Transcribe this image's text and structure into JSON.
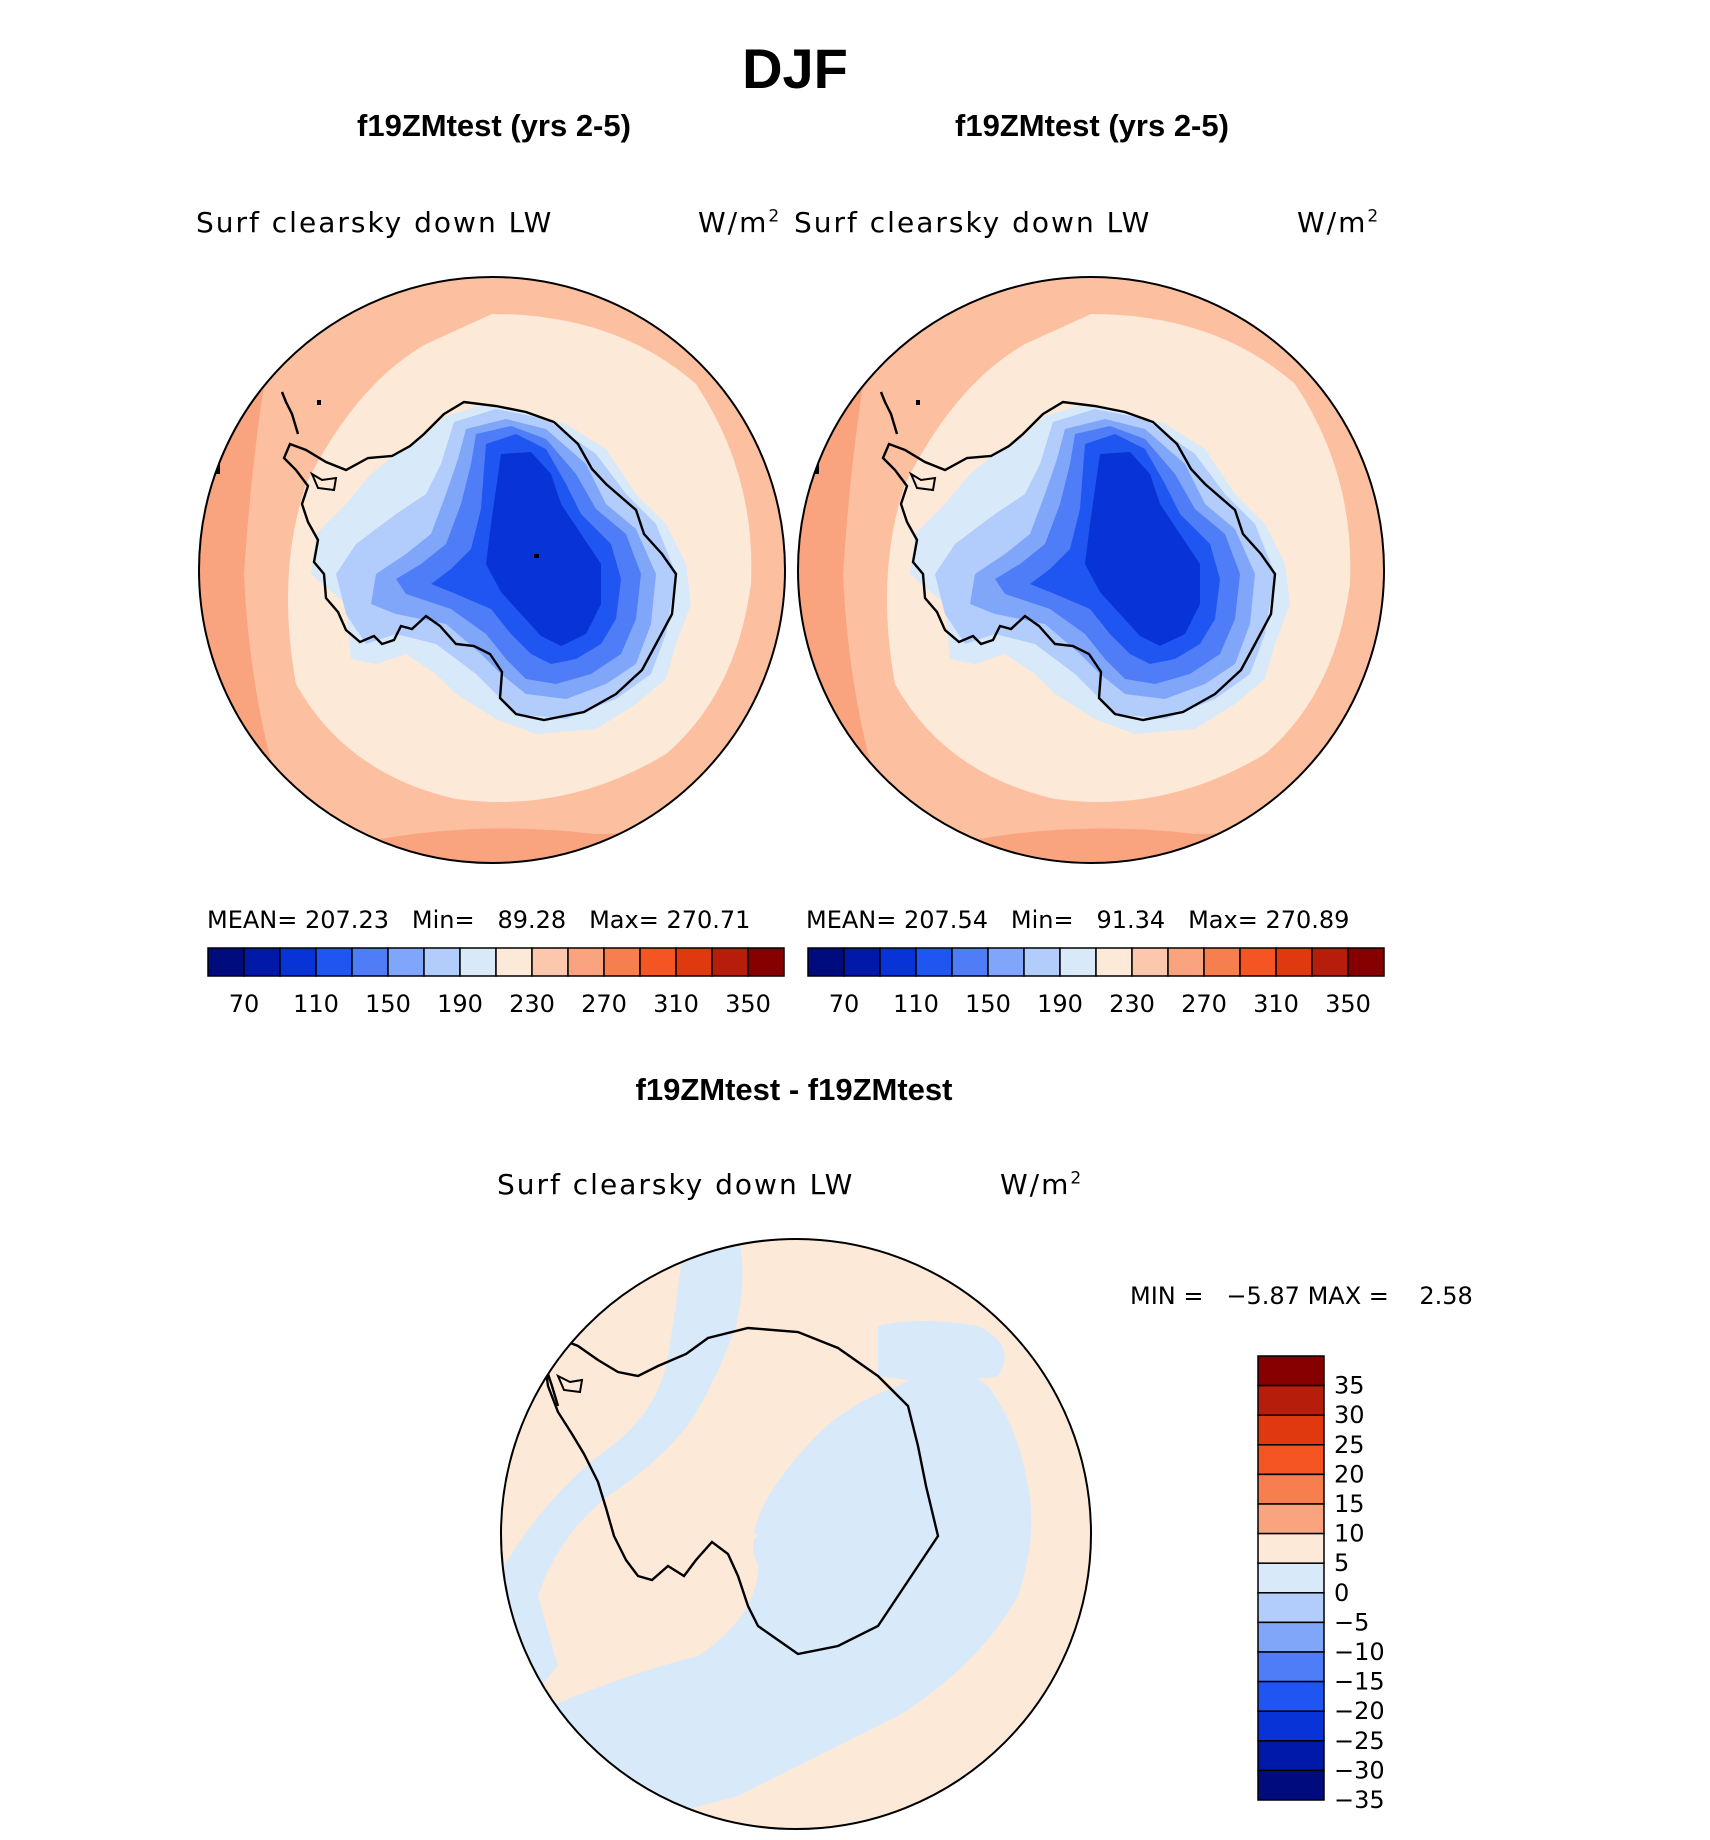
{
  "title": "DJF",
  "panels": [
    {
      "case_title": "f19ZMtest (yrs 2-5)",
      "variable": "Surf clearsky down LW",
      "units": "W/m",
      "units_exp": "2",
      "stats": {
        "mean_label": "MEAN=",
        "mean": "207.23",
        "min_label": "Min=",
        "min": "89.28",
        "max_label": "Max=",
        "max": "270.71"
      }
    },
    {
      "case_title": "f19ZMtest (yrs 2-5)",
      "variable": "Surf clearsky down LW",
      "units": "W/m",
      "units_exp": "2",
      "stats": {
        "mean_label": "MEAN=",
        "mean": "207.54",
        "min_label": "Min=",
        "min": "91.34",
        "max_label": "Max=",
        "max": "270.89"
      }
    }
  ],
  "colorbar": {
    "colors": [
      "#000c7d",
      "#0019a8",
      "#0833d6",
      "#1f55f0",
      "#4f7df7",
      "#80a6fa",
      "#b2ccfb",
      "#d8e9fa",
      "#fde9d8",
      "#fcc8ad",
      "#f9a47e",
      "#f77e4f",
      "#f55423",
      "#e0390f",
      "#b71d0b",
      "#860000"
    ],
    "tick_labels": [
      "70",
      "110",
      "150",
      "190",
      "230",
      "270",
      "310",
      "350"
    ]
  },
  "diff": {
    "title": "f19ZMtest - f19ZMtest",
    "variable": "Surf clearsky down LW",
    "units": "W/m",
    "units_exp": "2",
    "min_label": "MIN =",
    "min": "−5.87",
    "max_label": "MAX =",
    "max": "2.58",
    "colorbar": {
      "colors_top_to_bottom": [
        "#860000",
        "#b71d0b",
        "#e0390f",
        "#f55423",
        "#f77e4f",
        "#f9a47e",
        "#fde9d8",
        "#d8e9fa",
        "#b2ccfb",
        "#80a6fa",
        "#4f7df7",
        "#1f55f0",
        "#0833d6",
        "#0019a8",
        "#000c7d"
      ],
      "tick_labels": [
        "35",
        "30",
        "25",
        "20",
        "15",
        "10",
        "5",
        "0",
        "−5",
        "−10",
        "−15",
        "−20",
        "−25",
        "−30",
        "−35"
      ]
    }
  }
}
